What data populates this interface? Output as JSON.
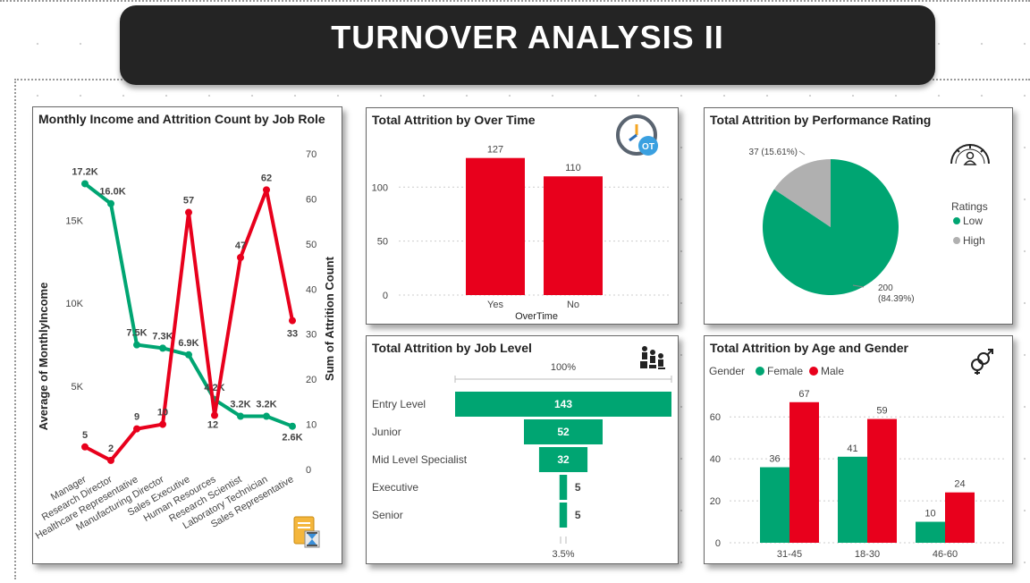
{
  "header": {
    "title": "TURNOVER ANALYSIS II"
  },
  "colors": {
    "green": "#00a572",
    "red": "#e8001c",
    "gray": "#b0b0b0",
    "dark": "#242424"
  },
  "icons": {
    "income": "document-hourglass-icon",
    "overtime": "clock-overtime-icon",
    "performance": "gauge-person-icon",
    "joblevel": "people-hierarchy-icon",
    "gender": "gender-symbol-icon"
  },
  "chart_data": [
    {
      "id": "income_attrition",
      "type": "line",
      "title": "Monthly Income and Attrition Count by Job Role",
      "xlabel": "",
      "ylabel": "Average of MonthlyIncome",
      "y2label": "Sum of Attrition Count",
      "categories": [
        "Manager",
        "Research Director",
        "Healthcare Representative",
        "Manufacturing Director",
        "Sales Executive",
        "Human Resources",
        "Research Scientist",
        "Laboratory Technician",
        "Sales Representative"
      ],
      "y_ticks": [
        "5K",
        "10K",
        "15K"
      ],
      "y2_ticks": [
        "0",
        "10",
        "20",
        "30",
        "40",
        "50",
        "60",
        "70"
      ],
      "ylim": [
        0,
        19000
      ],
      "y2lim": [
        0,
        70
      ],
      "series": [
        {
          "axis": "left",
          "color": "#00a572",
          "values": [
            17200,
            16000,
            7500,
            7300,
            6900,
            4200,
            3200,
            3200,
            2600
          ],
          "labels": [
            "17.2K",
            "16.0K",
            "7.5K",
            "7.3K",
            "6.9K",
            "4.2K",
            "3.2K",
            "3.2K",
            "2.6K"
          ]
        },
        {
          "axis": "right",
          "color": "#e8001c",
          "values": [
            5,
            2,
            9,
            10,
            57,
            12,
            47,
            62,
            33
          ],
          "labels": [
            "5",
            "2",
            "9",
            "10",
            "57",
            "12",
            "47",
            "62",
            "33"
          ]
        }
      ]
    },
    {
      "id": "overtime",
      "type": "bar",
      "title": "Total Attrition by Over Time",
      "xlabel": "OverTime",
      "ylabel": "",
      "categories": [
        "Yes",
        "No"
      ],
      "values": [
        127,
        110
      ],
      "value_labels": [
        "127",
        "110"
      ],
      "y_ticks": [
        "0",
        "50",
        "100"
      ],
      "ylim": [
        0,
        140
      ],
      "color": "#e8001c"
    },
    {
      "id": "performance",
      "type": "pie",
      "title": "Total Attrition by Performance Rating",
      "legend_title": "Ratings",
      "legend_position": "right",
      "slices": [
        {
          "name": "Low",
          "value": 200,
          "label_line1": "200",
          "label_line2": "(84.39%)",
          "color": "#00a572"
        },
        {
          "name": "High",
          "value": 37,
          "label_line1": "37 (15.61%)",
          "label_line2": "",
          "color": "#b0b0b0"
        }
      ]
    },
    {
      "id": "joblevel",
      "type": "bar",
      "orientation": "funnel",
      "title": "Total Attrition by Job Level",
      "top_label": "100%",
      "bottom_label": "3.5%",
      "categories": [
        "Entry Level",
        "Junior",
        "Mid Level Specialist",
        "Executive",
        "Senior"
      ],
      "values": [
        143,
        52,
        32,
        5,
        5
      ],
      "value_labels": [
        "143",
        "52",
        "32",
        "5",
        "5"
      ],
      "color": "#00a572"
    },
    {
      "id": "age_gender",
      "type": "bar",
      "title": "Total Attrition by Age and Gender",
      "legend_title": "Gender",
      "legend_position": "top-left",
      "categories": [
        "31-45",
        "18-30",
        "46-60"
      ],
      "y_ticks": [
        "0",
        "20",
        "40",
        "60"
      ],
      "ylim": [
        0,
        75
      ],
      "series": [
        {
          "name": "Female",
          "color": "#00a572",
          "values": [
            36,
            41,
            10
          ],
          "labels": [
            "36",
            "41",
            "10"
          ]
        },
        {
          "name": "Male",
          "color": "#e8001c",
          "values": [
            67,
            59,
            24
          ],
          "labels": [
            "67",
            "59",
            "24"
          ]
        }
      ]
    }
  ]
}
